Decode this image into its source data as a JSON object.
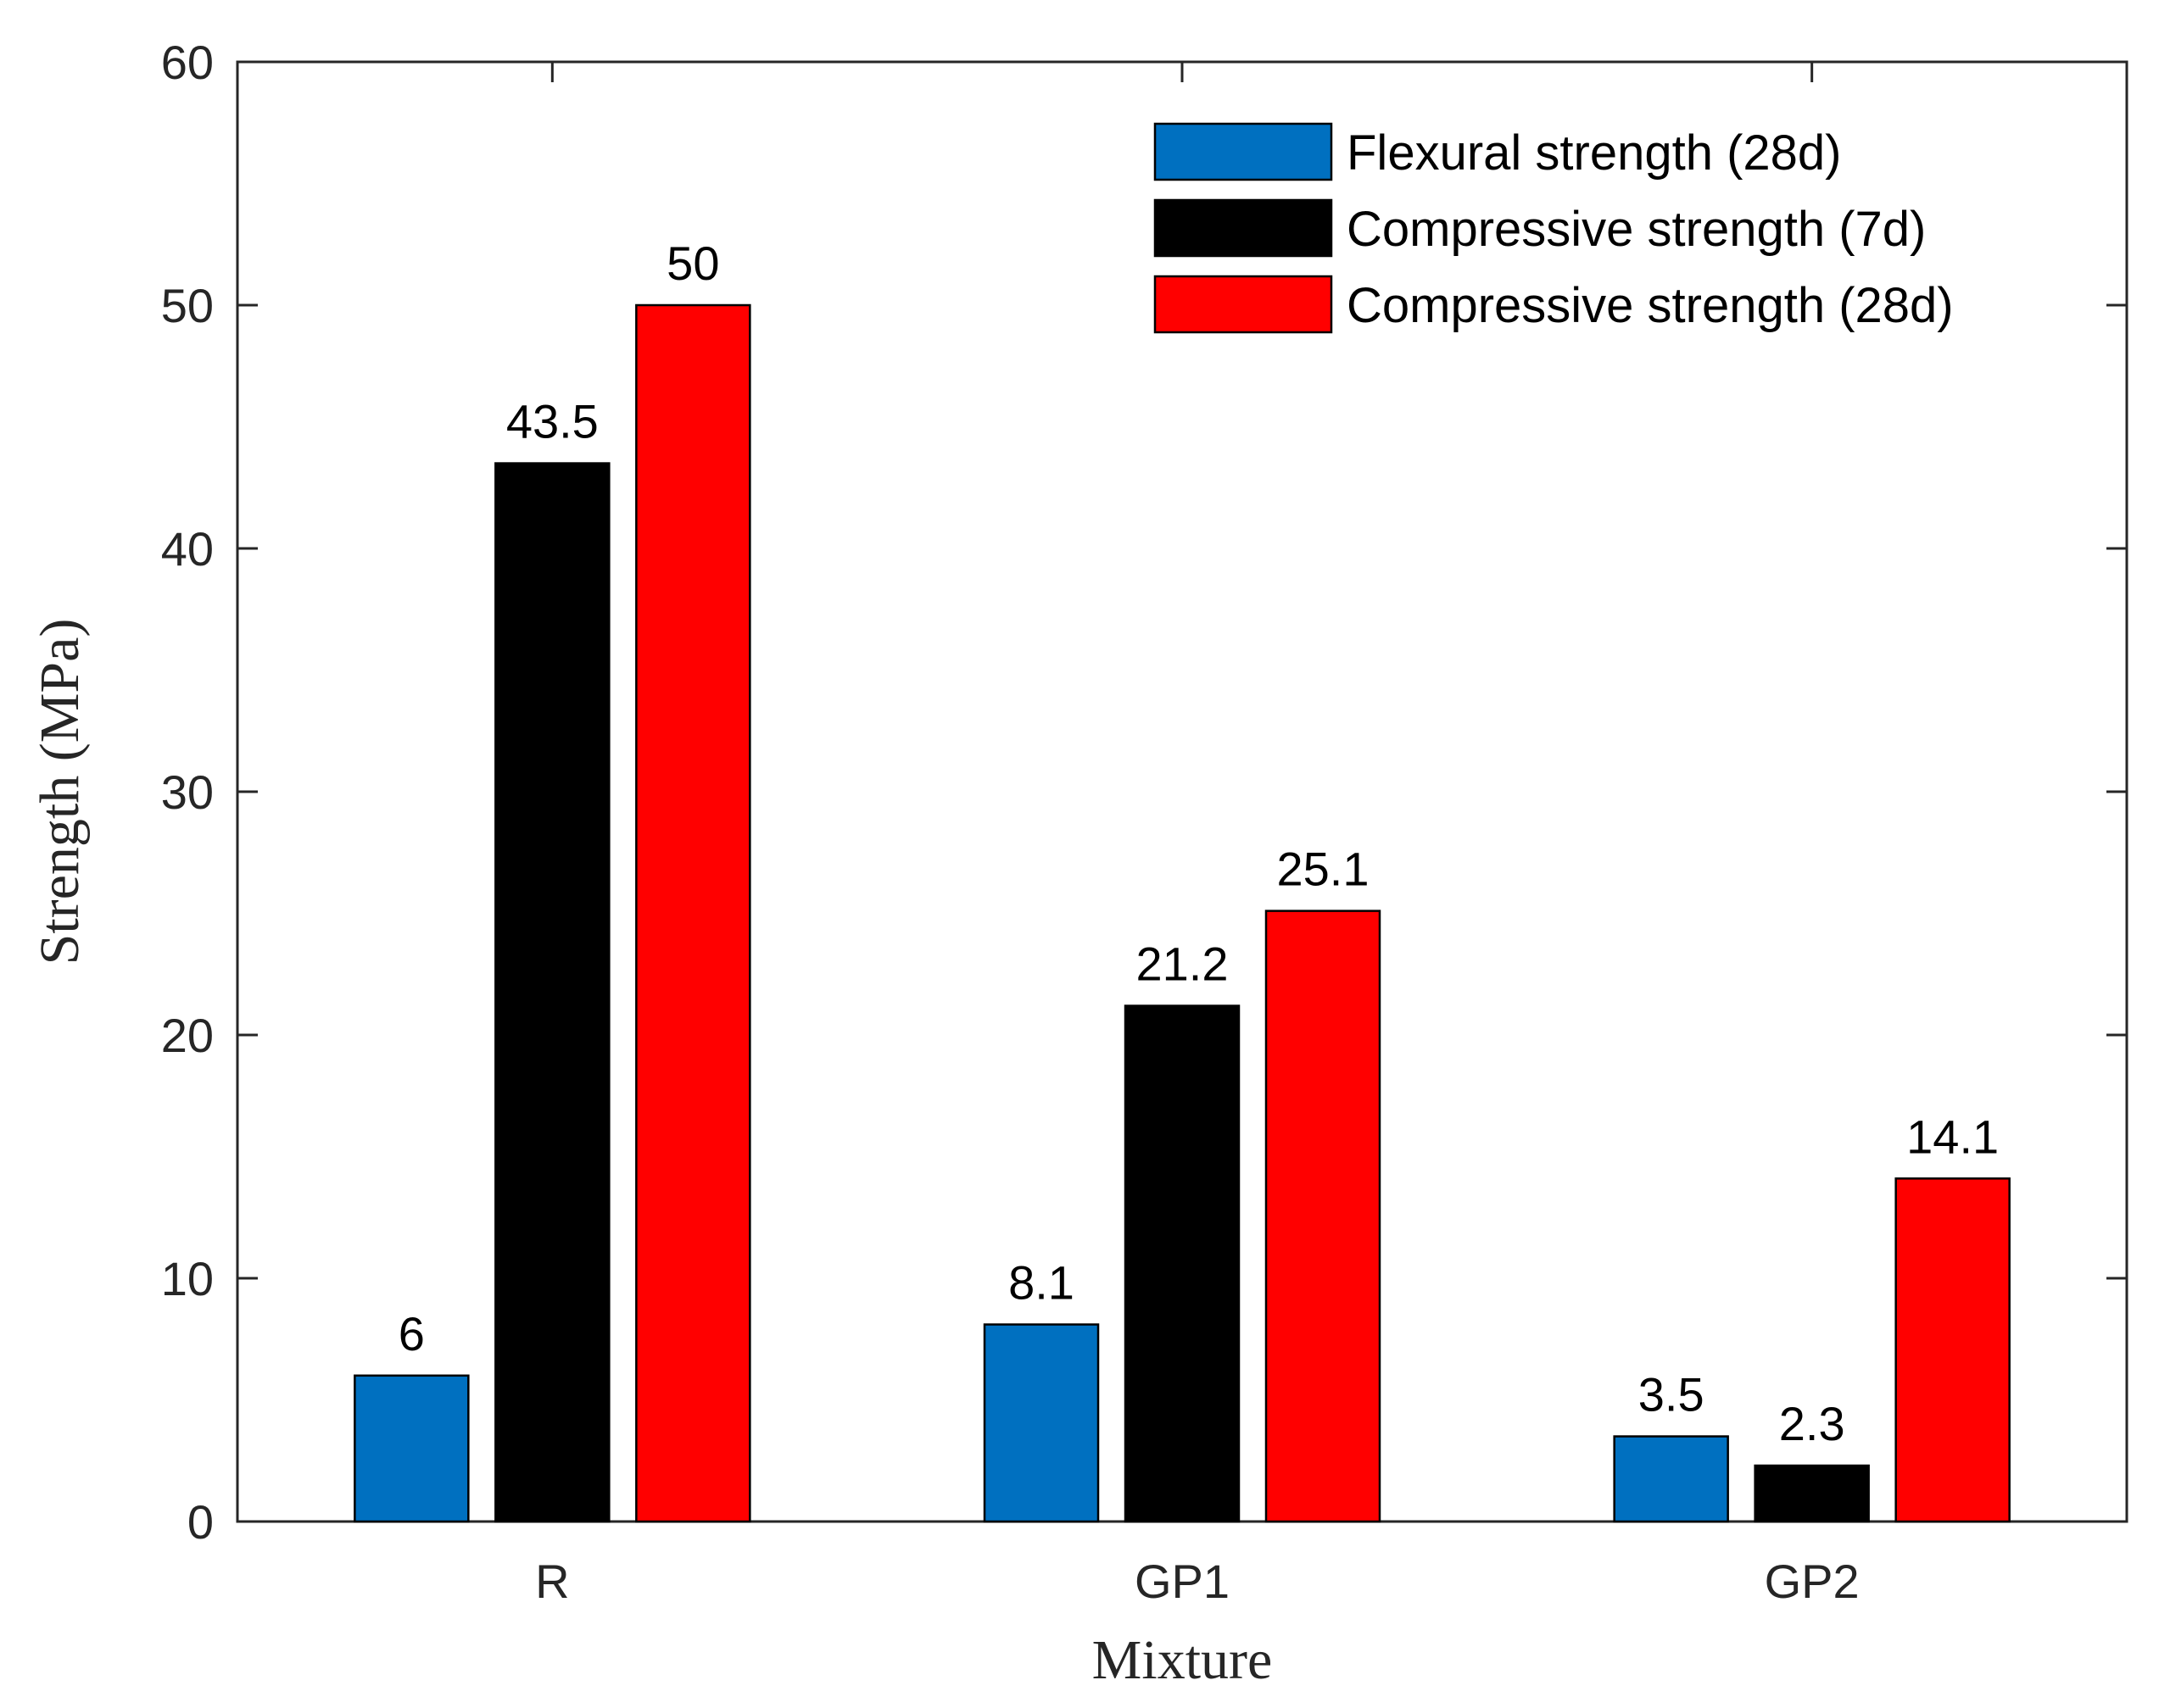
{
  "chart_data": {
    "type": "bar",
    "title": "",
    "xlabel": "Mixture",
    "ylabel": "Strength (MPa)",
    "ylim": [
      0,
      60
    ],
    "yticks": [
      0,
      10,
      20,
      30,
      40,
      50,
      60
    ],
    "categories": [
      "R",
      "GP1",
      "GP2"
    ],
    "series": [
      {
        "name": "Flexural strength (28d)",
        "color": "#0070C0",
        "values": [
          6,
          8.1,
          3.5
        ],
        "labels": [
          "6",
          "8.1",
          "3.5"
        ]
      },
      {
        "name": "Compressive strength (7d)",
        "color": "#000000",
        "values": [
          43.5,
          21.2,
          2.3
        ],
        "labels": [
          "43.5",
          "21.2",
          "2.3"
        ]
      },
      {
        "name": "Compressive strength (28d)",
        "color": "#FF0000",
        "values": [
          50,
          25.1,
          14.1
        ],
        "labels": [
          "50",
          "25.1",
          "14.1"
        ]
      }
    ],
    "legend_position": "top-right",
    "grid": false
  }
}
